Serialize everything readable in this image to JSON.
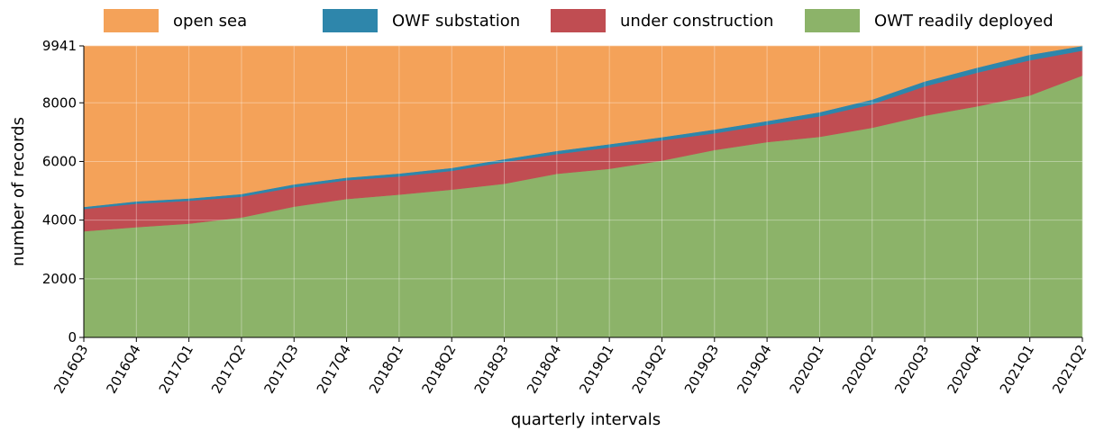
{
  "chart_data": {
    "type": "stacked_area",
    "xlabel": "quarterly intervals",
    "ylabel": "number of records",
    "categories": [
      "2016Q3",
      "2016Q4",
      "2017Q1",
      "2017Q2",
      "2017Q3",
      "2017Q4",
      "2018Q1",
      "2018Q2",
      "2018Q3",
      "2018Q4",
      "2019Q1",
      "2019Q2",
      "2019Q3",
      "2019Q4",
      "2020Q1",
      "2020Q2",
      "2020Q3",
      "2020Q4",
      "2021Q1",
      "2021Q2"
    ],
    "series": [
      {
        "name": "OWT readily deployed",
        "color": "#8cb369",
        "values": [
          3620,
          3760,
          3880,
          4090,
          4460,
          4720,
          4870,
          5040,
          5240,
          5580,
          5750,
          6030,
          6390,
          6660,
          6840,
          7150,
          7560,
          7880,
          8250,
          8930
        ]
      },
      {
        "name": "under construction",
        "color": "#c04d52",
        "values": [
          760,
          800,
          780,
          710,
          660,
          640,
          620,
          640,
          740,
          670,
          730,
          690,
          570,
          590,
          700,
          800,
          1000,
          1150,
          1200,
          850
        ]
      },
      {
        "name": "OWF substation",
        "color": "#2e86ab",
        "values": [
          70,
          80,
          80,
          90,
          100,
          90,
          100,
          100,
          100,
          110,
          110,
          110,
          130,
          130,
          140,
          160,
          170,
          170,
          190,
          161
        ]
      },
      {
        "name": "open sea",
        "color": "#f4a259",
        "values": [
          5491,
          5301,
          5201,
          5051,
          4721,
          4491,
          4351,
          4161,
          3861,
          3581,
          3351,
          3111,
          2851,
          2561,
          2261,
          1831,
          1211,
          741,
          301,
          0
        ]
      }
    ],
    "legend_order": [
      3,
      2,
      1,
      0
    ],
    "ylim": [
      0,
      9941
    ],
    "yticks": [
      0,
      2000,
      4000,
      6000,
      8000,
      9941
    ],
    "grid": true
  }
}
